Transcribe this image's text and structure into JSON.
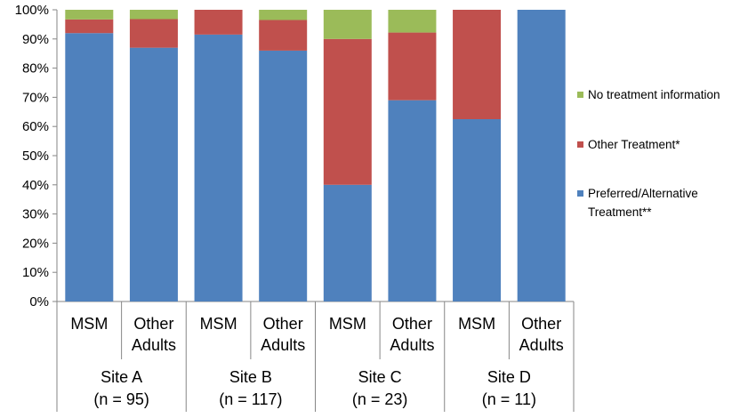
{
  "chart_data": {
    "type": "bar",
    "stacked": true,
    "percent": true,
    "title": "",
    "xlabel": "",
    "ylabel": "",
    "ylim": [
      0,
      100
    ],
    "yticks": [
      "0%",
      "10%",
      "20%",
      "30%",
      "40%",
      "50%",
      "60%",
      "70%",
      "80%",
      "90%",
      "100%"
    ],
    "grid": false,
    "legend_position": "right",
    "groups": [
      {
        "name_line1": "Site A",
        "name_line2": "(n = 95)"
      },
      {
        "name_line1": "Site B",
        "name_line2": "(n = 117)"
      },
      {
        "name_line1": "Site C",
        "name_line2": "(n = 23)"
      },
      {
        "name_line1": "Site D",
        "name_line2": "(n = 11)"
      }
    ],
    "categories": [
      {
        "line1": "MSM",
        "line2": ""
      },
      {
        "line1": "Other",
        "line2": "Adults"
      },
      {
        "line1": "MSM",
        "line2": ""
      },
      {
        "line1": "Other",
        "line2": "Adults"
      },
      {
        "line1": "MSM",
        "line2": ""
      },
      {
        "line1": "Other",
        "line2": "Adults"
      },
      {
        "line1": "MSM",
        "line2": ""
      },
      {
        "line1": "Other",
        "line2": "Adults"
      }
    ],
    "series": [
      {
        "name_line1": "Preferred/Alternative",
        "name_line2": "Treatment**",
        "color": "#4F81BD",
        "values": [
          92,
          87,
          91.5,
          86,
          40,
          69,
          62.5,
          100
        ]
      },
      {
        "name_line1": "Other Treatment*",
        "name_line2": "",
        "color": "#C0504D",
        "values": [
          4.7,
          9.8,
          8.5,
          10.5,
          50,
          23.2,
          37.5,
          0
        ]
      },
      {
        "name_line1": "No treatment information",
        "name_line2": "",
        "color": "#9BBB59",
        "values": [
          3.3,
          3.2,
          0,
          3.5,
          10,
          7.8,
          0,
          0
        ]
      }
    ]
  }
}
